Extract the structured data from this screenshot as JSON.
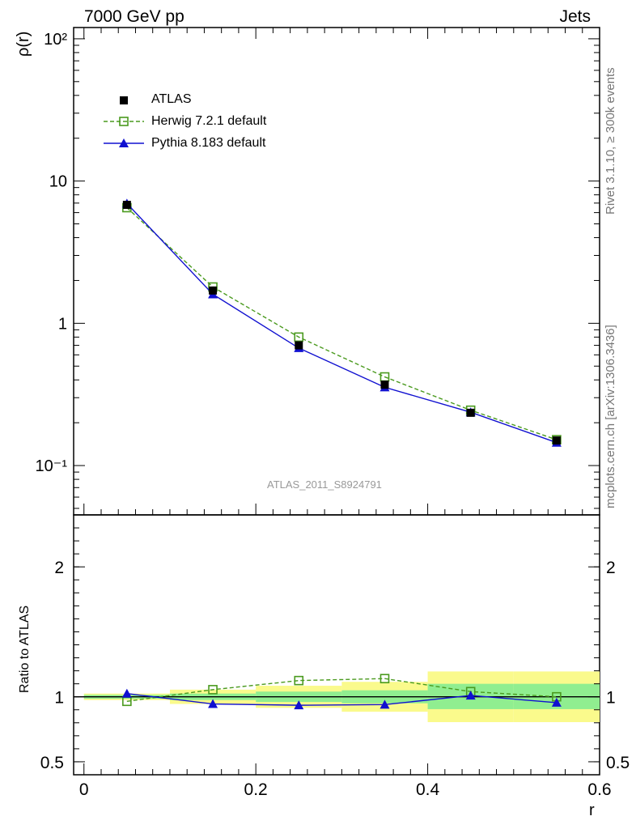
{
  "header": {
    "left_title": "7000 GeV pp",
    "right_title": "Jets"
  },
  "side_labels": {
    "rivet": "Rivet 3.1.10, ≥ 300k events",
    "mcplots": "mcplots.cern.ch [arXiv:1306.3436]"
  },
  "reference": "ATLAS_2011_S8924791",
  "chart_data": {
    "type": "line",
    "main": {
      "ylabel": "ρ(r)",
      "yscale": "log",
      "ylim": [
        0.045,
        120
      ],
      "y_ticks": [
        "10⁻¹",
        "1",
        "10",
        "10²"
      ],
      "y_tick_values": [
        0.1,
        1,
        10,
        100
      ],
      "x": [
        0.05,
        0.15,
        0.25,
        0.35,
        0.45,
        0.55
      ],
      "series": [
        {
          "name": "ATLAS",
          "marker": "filled-square",
          "color": "#000000",
          "values": [
            6.8,
            1.7,
            0.7,
            0.37,
            0.235,
            0.15
          ]
        },
        {
          "name": "Herwig 7.2.1 default",
          "marker": "open-square",
          "line": "dashed",
          "color": "#4a9a1e",
          "values": [
            6.5,
            1.8,
            0.8,
            0.42,
            0.245,
            0.152
          ]
        },
        {
          "name": "Pythia 8.183 default",
          "marker": "filled-triangle",
          "line": "solid",
          "color": "#1010d0",
          "values": [
            6.95,
            1.6,
            0.67,
            0.355,
            0.237,
            0.145
          ]
        }
      ]
    },
    "ratio": {
      "ylabel": "Ratio to ATLAS",
      "ylim": [
        0.4,
        2.4
      ],
      "y_tick_values": [
        0.5,
        1,
        2
      ],
      "y_ticks": [
        "0.5",
        "1",
        "2"
      ],
      "x_bins": [
        [
          0.0,
          0.1
        ],
        [
          0.1,
          0.2
        ],
        [
          0.2,
          0.3
        ],
        [
          0.3,
          0.4
        ],
        [
          0.4,
          0.5
        ],
        [
          0.5,
          0.6
        ]
      ],
      "band_inner": [
        [
          0.985,
          1.015
        ],
        [
          0.975,
          1.025
        ],
        [
          0.96,
          1.04
        ],
        [
          0.95,
          1.05
        ],
        [
          0.905,
          1.1
        ],
        [
          0.905,
          1.1
        ]
      ],
      "band_outer": [
        [
          0.975,
          1.025
        ],
        [
          0.945,
          1.055
        ],
        [
          0.915,
          1.085
        ],
        [
          0.885,
          1.115
        ],
        [
          0.805,
          1.195
        ],
        [
          0.805,
          1.195
        ]
      ],
      "series": [
        {
          "name": "Herwig 7.2.1 default",
          "values": [
            0.965,
            1.055,
            1.125,
            1.14,
            1.04,
            1.0
          ]
        },
        {
          "name": "Pythia 8.183 default",
          "values": [
            1.025,
            0.945,
            0.935,
            0.94,
            1.01,
            0.955
          ]
        }
      ]
    },
    "xlabel": "r",
    "xlim": [
      -0.012,
      0.6
    ],
    "x_tick_values": [
      0,
      0.2,
      0.4,
      0.6
    ],
    "x_ticks": [
      "0",
      "0.2",
      "0.4",
      "0.6"
    ]
  }
}
